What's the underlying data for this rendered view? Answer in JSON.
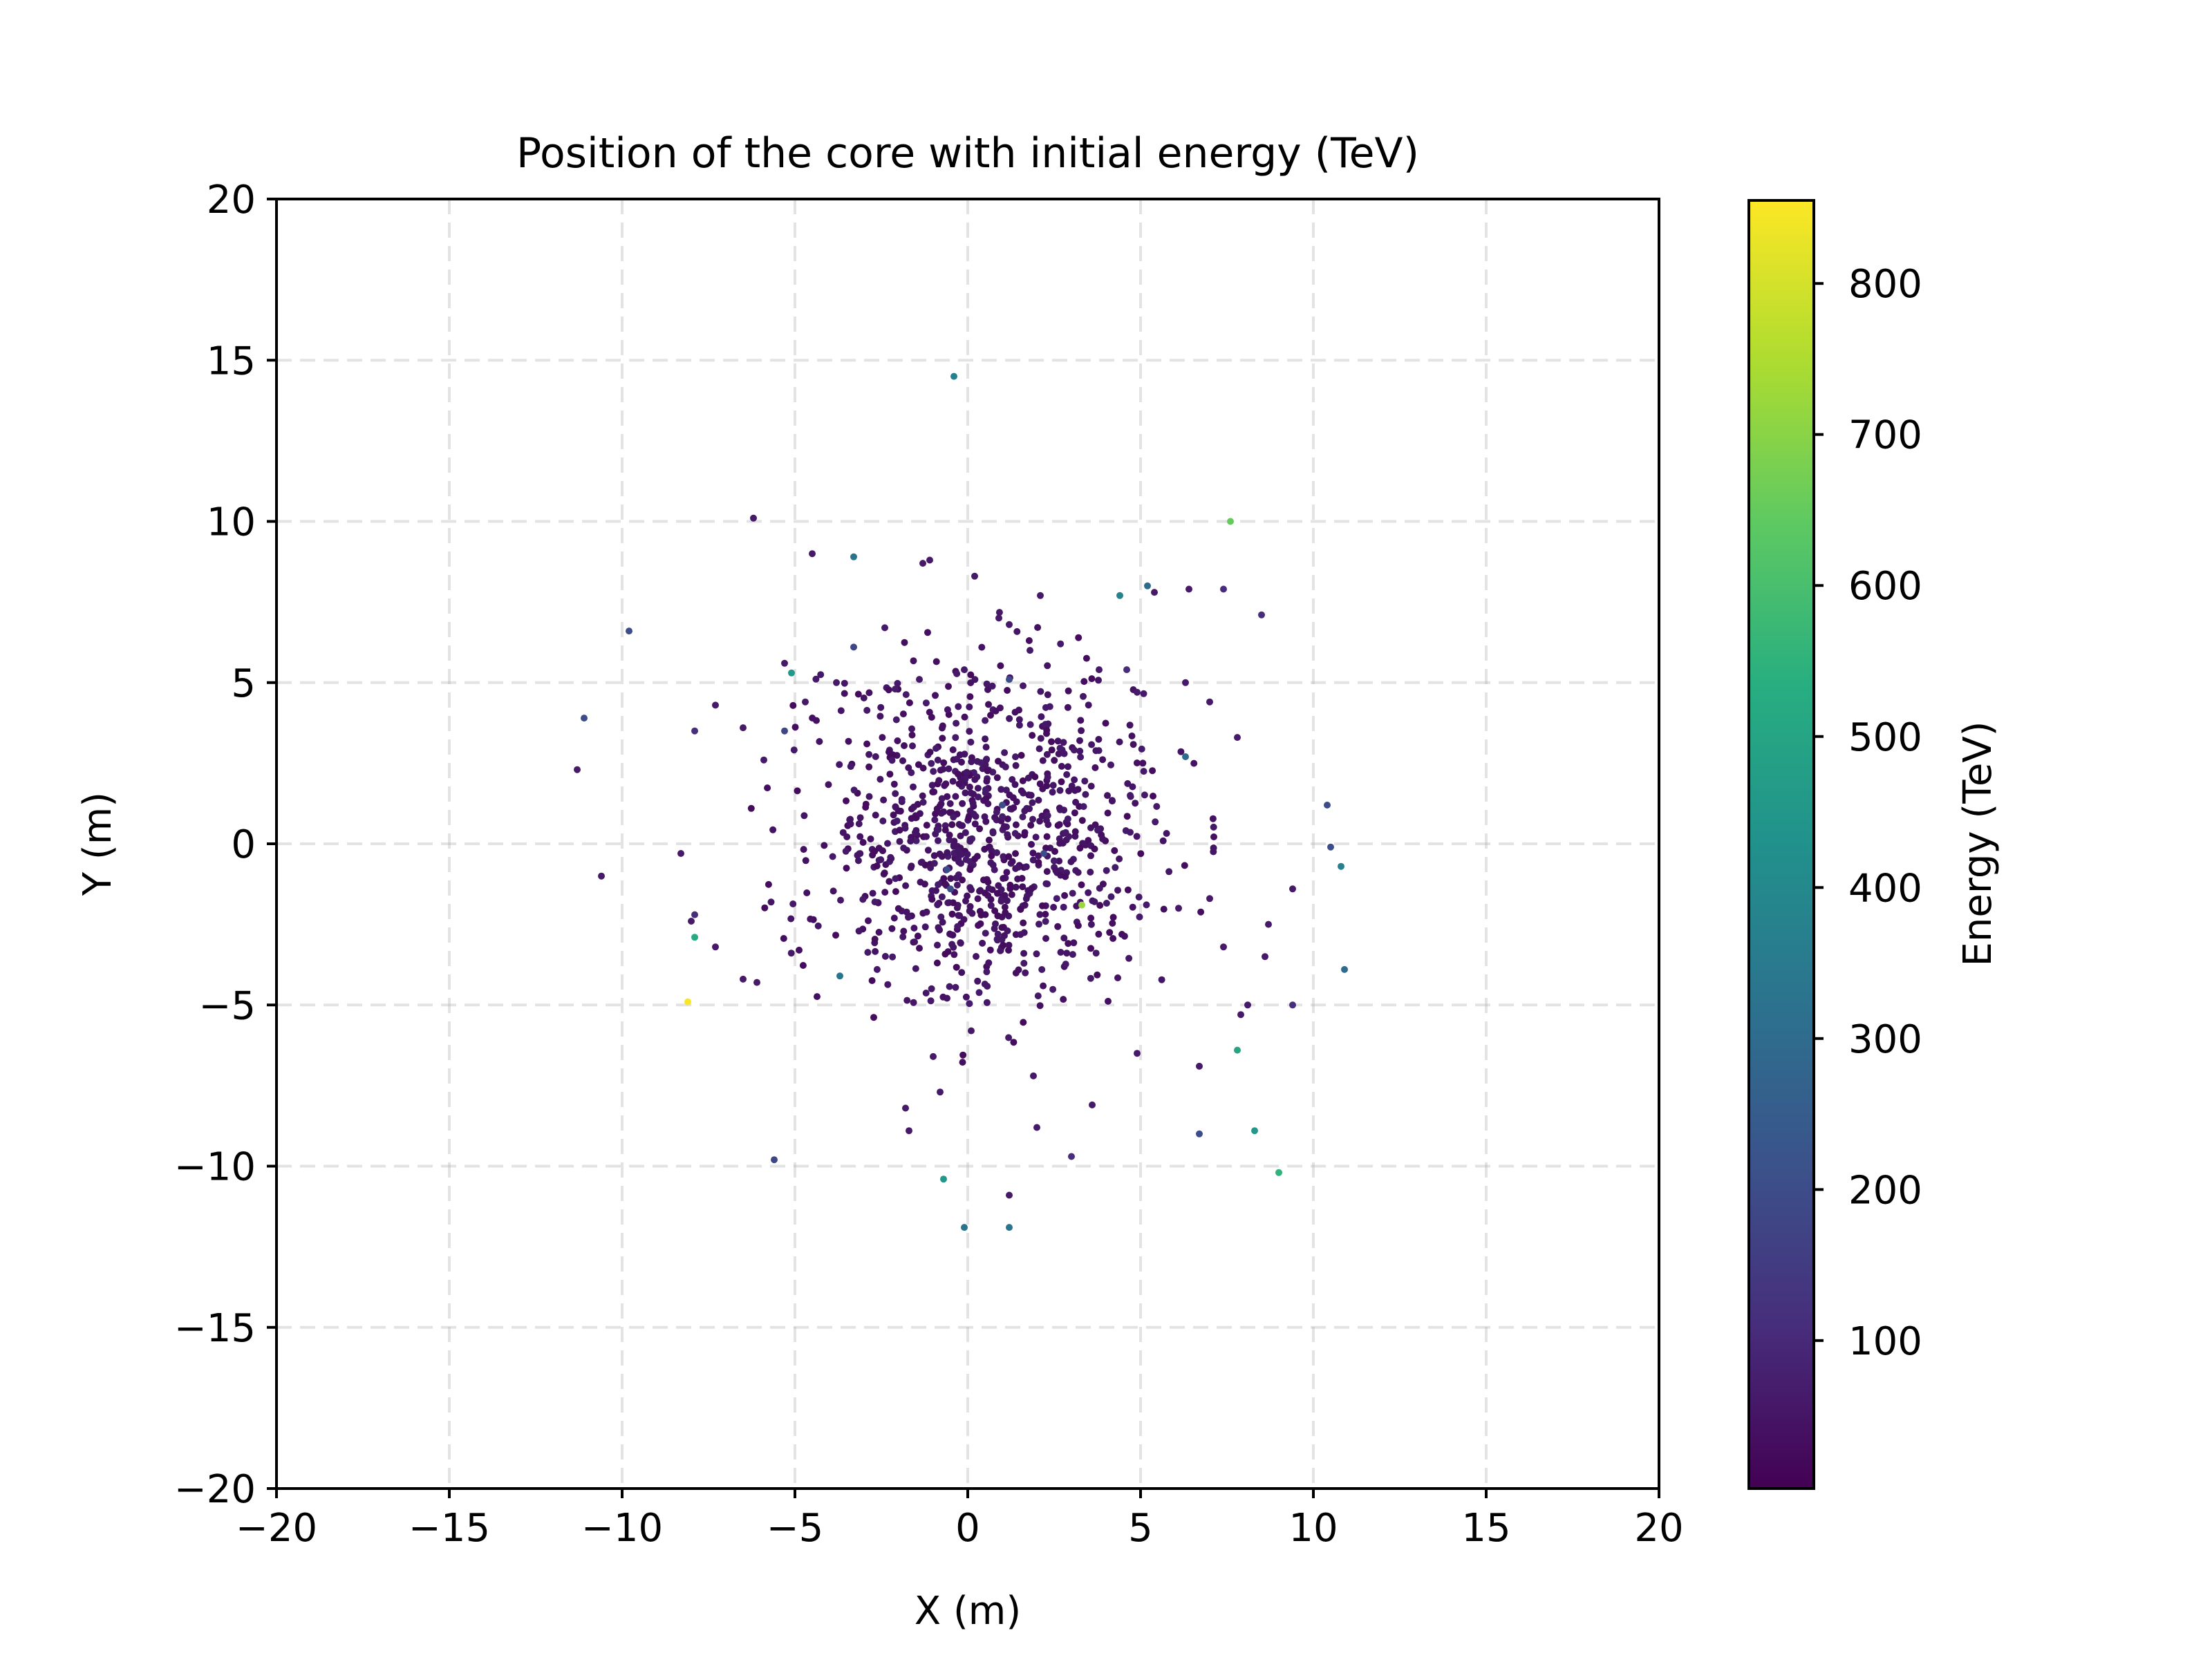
{
  "chart_data": {
    "type": "scatter",
    "title": "Position of the core with initial energy (TeV)",
    "xlabel": "X (m)",
    "ylabel": "Y (m)",
    "xlim": [
      -20,
      20
    ],
    "ylim": [
      -20,
      20
    ],
    "xticks": [
      "−20",
      "−15",
      "−10",
      "−5",
      "0",
      "5",
      "10",
      "15",
      "20"
    ],
    "yticks": [
      "−20",
      "−15",
      "−10",
      "−5",
      "0",
      "5",
      "10",
      "15",
      "20"
    ],
    "xtick_values": [
      -20,
      -15,
      -10,
      -5,
      0,
      5,
      10,
      15,
      20
    ],
    "ytick_values": [
      -20,
      -15,
      -10,
      -5,
      0,
      5,
      10,
      15,
      20
    ],
    "grid": true,
    "colormap": "viridis",
    "colorbar": {
      "label": "Energy (TeV)",
      "range": [
        2,
        855
      ],
      "tick_values": [
        100,
        200,
        300,
        400,
        500,
        600,
        700,
        800
      ],
      "tick_labels": [
        "100",
        "200",
        "300",
        "400",
        "500",
        "600",
        "700",
        "800"
      ]
    },
    "points": [
      {
        "x": -0.4,
        "y": 14.5,
        "e": 370
      },
      {
        "x": -6.2,
        "y": 10.1,
        "e": 60
      },
      {
        "x": 7.6,
        "y": 10.0,
        "e": 650
      },
      {
        "x": -4.5,
        "y": 9.0,
        "e": 60
      },
      {
        "x": -3.3,
        "y": 8.9,
        "e": 330
      },
      {
        "x": -1.3,
        "y": 8.7,
        "e": 60
      },
      {
        "x": -1.1,
        "y": 8.8,
        "e": 60
      },
      {
        "x": 0.2,
        "y": 8.3,
        "e": 60
      },
      {
        "x": 5.2,
        "y": 8.0,
        "e": 300
      },
      {
        "x": 5.4,
        "y": 7.8,
        "e": 60
      },
      {
        "x": 6.4,
        "y": 7.9,
        "e": 60
      },
      {
        "x": 7.4,
        "y": 7.9,
        "e": 110
      },
      {
        "x": 4.4,
        "y": 7.7,
        "e": 380
      },
      {
        "x": 2.1,
        "y": 7.7,
        "e": 60
      },
      {
        "x": 8.5,
        "y": 7.1,
        "e": 110
      },
      {
        "x": 0.9,
        "y": 7.0,
        "e": 60
      },
      {
        "x": 1.2,
        "y": 6.8,
        "e": 60
      },
      {
        "x": -2.4,
        "y": 6.7,
        "e": 60
      },
      {
        "x": -9.8,
        "y": 6.6,
        "e": 200
      },
      {
        "x": -3.3,
        "y": 6.1,
        "e": 180
      },
      {
        "x": 1.8,
        "y": 6.0,
        "e": 60
      },
      {
        "x": -5.3,
        "y": 5.6,
        "e": 60
      },
      {
        "x": -5.1,
        "y": 5.3,
        "e": 450
      },
      {
        "x": -0.1,
        "y": 5.4,
        "e": 60
      },
      {
        "x": 3.8,
        "y": 5.4,
        "e": 60
      },
      {
        "x": 4.6,
        "y": 5.4,
        "e": 110
      },
      {
        "x": 6.3,
        "y": 5.0,
        "e": 60
      },
      {
        "x": 1.2,
        "y": 5.1,
        "e": 200
      },
      {
        "x": 1.6,
        "y": 4.9,
        "e": 60
      },
      {
        "x": -1.4,
        "y": 5.1,
        "e": 60
      },
      {
        "x": -3.8,
        "y": 5.0,
        "e": 60
      },
      {
        "x": -2.1,
        "y": 4.8,
        "e": 60
      },
      {
        "x": -4.7,
        "y": 4.4,
        "e": 60
      },
      {
        "x": -7.3,
        "y": 4.3,
        "e": 60
      },
      {
        "x": 7.0,
        "y": 4.4,
        "e": 60
      },
      {
        "x": 4.9,
        "y": 4.7,
        "e": 60
      },
      {
        "x": -11.1,
        "y": 3.9,
        "e": 200
      },
      {
        "x": -7.9,
        "y": 3.5,
        "e": 110
      },
      {
        "x": -5.3,
        "y": 3.5,
        "e": 180
      },
      {
        "x": -6.5,
        "y": 3.6,
        "e": 60
      },
      {
        "x": 7.8,
        "y": 3.3,
        "e": 60
      },
      {
        "x": 6.3,
        "y": 2.7,
        "e": 300
      },
      {
        "x": -5.9,
        "y": 2.6,
        "e": 60
      },
      {
        "x": -11.3,
        "y": 2.3,
        "e": 60
      },
      {
        "x": 10.4,
        "y": 1.2,
        "e": 200
      },
      {
        "x": 4.7,
        "y": 1.5,
        "e": 60
      },
      {
        "x": 10.5,
        "y": -0.1,
        "e": 200
      },
      {
        "x": 10.8,
        "y": -0.7,
        "e": 370
      },
      {
        "x": -8.3,
        "y": -0.3,
        "e": 60
      },
      {
        "x": -10.6,
        "y": -1.0,
        "e": 60
      },
      {
        "x": 9.4,
        "y": -1.4,
        "e": 60
      },
      {
        "x": 3.3,
        "y": -1.9,
        "e": 720
      },
      {
        "x": 6.1,
        "y": -2.0,
        "e": 60
      },
      {
        "x": 7.0,
        "y": -1.7,
        "e": 60
      },
      {
        "x": -7.9,
        "y": -2.2,
        "e": 110
      },
      {
        "x": -8.0,
        "y": -2.4,
        "e": 60
      },
      {
        "x": -7.9,
        "y": -2.9,
        "e": 520
      },
      {
        "x": -7.3,
        "y": -3.2,
        "e": 60
      },
      {
        "x": 8.7,
        "y": -2.5,
        "e": 60
      },
      {
        "x": 7.4,
        "y": -3.2,
        "e": 60
      },
      {
        "x": 8.6,
        "y": -3.5,
        "e": 60
      },
      {
        "x": 10.9,
        "y": -3.9,
        "e": 300
      },
      {
        "x": -3.7,
        "y": -4.1,
        "e": 330
      },
      {
        "x": -6.5,
        "y": -4.2,
        "e": 60
      },
      {
        "x": -6.1,
        "y": -4.3,
        "e": 60
      },
      {
        "x": -8.1,
        "y": -4.9,
        "e": 850
      },
      {
        "x": 9.4,
        "y": -5.0,
        "e": 110
      },
      {
        "x": 8.1,
        "y": -5.0,
        "e": 60
      },
      {
        "x": 7.9,
        "y": -5.3,
        "e": 60
      },
      {
        "x": 7.8,
        "y": -6.4,
        "e": 500
      },
      {
        "x": 6.7,
        "y": -6.9,
        "e": 60
      },
      {
        "x": 4.9,
        "y": -6.5,
        "e": 60
      },
      {
        "x": 3.6,
        "y": -8.1,
        "e": 60
      },
      {
        "x": 2.0,
        "y": -8.8,
        "e": 60
      },
      {
        "x": 6.7,
        "y": -9.0,
        "e": 200
      },
      {
        "x": 8.3,
        "y": -8.9,
        "e": 450
      },
      {
        "x": 9.0,
        "y": -10.2,
        "e": 550
      },
      {
        "x": 3.0,
        "y": -9.7,
        "e": 110
      },
      {
        "x": -5.6,
        "y": -9.8,
        "e": 180
      },
      {
        "x": -0.7,
        "y": -10.4,
        "e": 450
      },
      {
        "x": 1.2,
        "y": -10.9,
        "e": 60
      },
      {
        "x": -0.1,
        "y": -11.9,
        "e": 330
      },
      {
        "x": 1.2,
        "y": -11.9,
        "e": 330
      },
      {
        "x": -1.8,
        "y": -8.2,
        "e": 60
      },
      {
        "x": -1.7,
        "y": -8.9,
        "e": 60
      },
      {
        "x": -0.8,
        "y": -7.7,
        "e": 60
      },
      {
        "x": 1.9,
        "y": -7.2,
        "e": 60
      },
      {
        "x": -1.0,
        "y": -6.6,
        "e": 60
      },
      {
        "x": 0.1,
        "y": -5.8,
        "e": 60
      },
      {
        "x": -0.6,
        "y": -0.8,
        "e": 200
      },
      {
        "x": -0.5,
        "y": -1.4,
        "e": 200
      },
      {
        "x": 2.2,
        "y": -0.3,
        "e": 200
      },
      {
        "x": 1.0,
        "y": 1.2,
        "e": 200
      }
    ],
    "cluster": {
      "count": 900,
      "seed": 20240517,
      "center": [
        0.4,
        0.2
      ],
      "sigma": [
        2.4,
        2.5
      ],
      "energy": 25
    }
  }
}
